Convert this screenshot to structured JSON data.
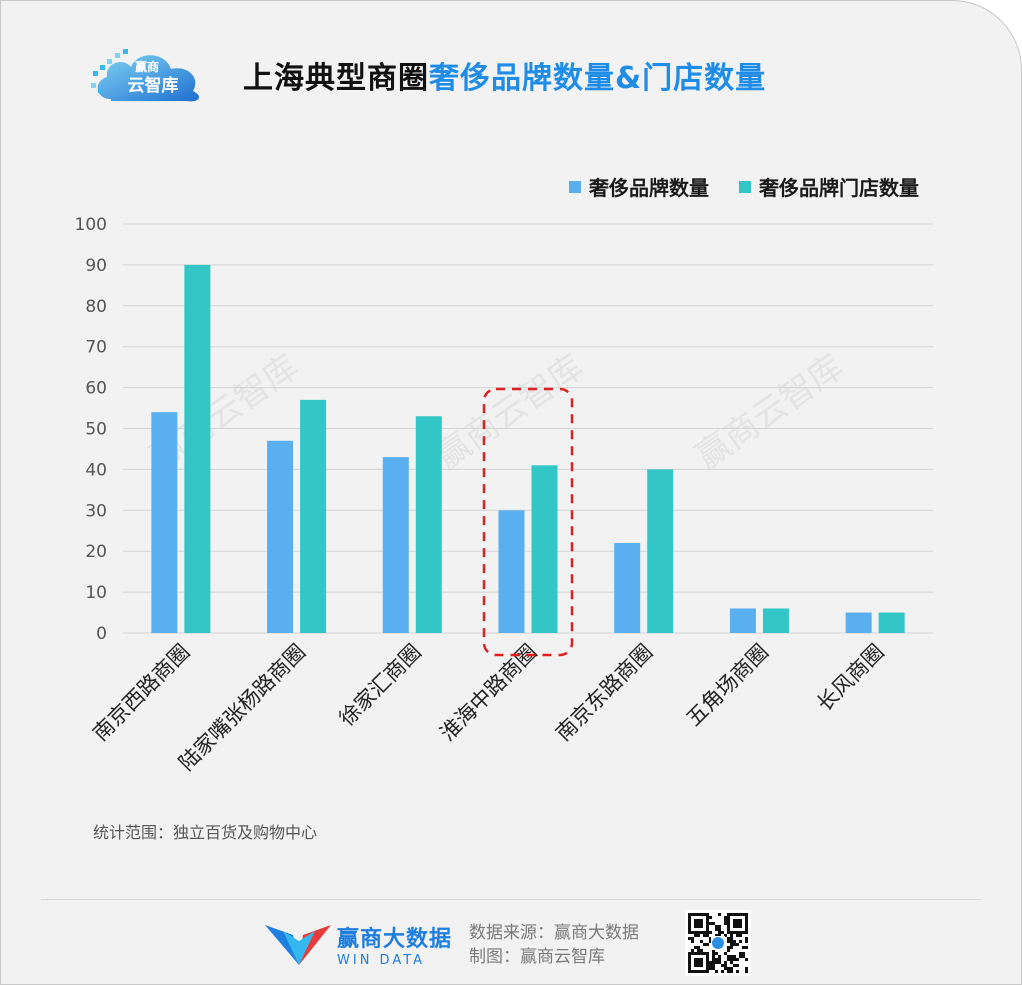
{
  "header": {
    "logo_text": "赢商云智库",
    "title_part1": "上海典型商圈",
    "title_part2": "奢侈品牌数量&门店数量"
  },
  "chart_data": {
    "type": "bar",
    "title": "上海典型商圈奢侈品牌数量&门店数量",
    "categories": [
      "南京西路商圈",
      "陆家嘴张杨路商圈",
      "徐家汇商圈",
      "淮海中路商圈",
      "南京东路商圈",
      "五角场商圈",
      "长风商圈"
    ],
    "series": [
      {
        "name": "奢侈品牌数量",
        "color": "#5aaff0",
        "values": [
          54,
          47,
          43,
          30,
          22,
          6,
          5
        ]
      },
      {
        "name": "奢侈品牌门店数量",
        "color": "#33c6c6",
        "values": [
          90,
          57,
          53,
          41,
          40,
          6,
          5
        ]
      }
    ],
    "ylim": [
      0,
      100
    ],
    "yticks": [
      0,
      10,
      20,
      30,
      40,
      50,
      60,
      70,
      80,
      90,
      100
    ],
    "grid": true,
    "legend_position": "top-right",
    "highlight_category": "淮海中路商圈",
    "highlight_color": "#e02020",
    "watermark": "赢商云智库"
  },
  "note": "统计范围：独立百货及购物中心",
  "footer": {
    "brand_cn": "赢商大数据",
    "brand_en": "WIN DATA",
    "source_line": "数据来源：赢商大数据",
    "made_line": "制图：赢商云智库"
  }
}
